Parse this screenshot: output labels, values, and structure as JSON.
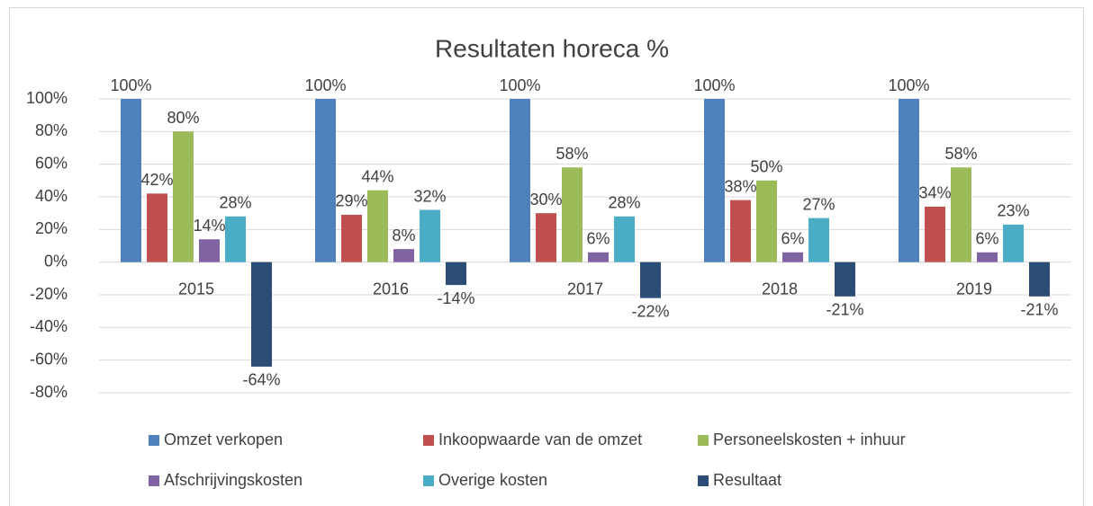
{
  "chart_data": {
    "type": "bar",
    "title": "Resultaten horeca %",
    "categories": [
      "2015",
      "2016",
      "2017",
      "2018",
      "2019"
    ],
    "series": [
      {
        "name": "Omzet verkopen",
        "color": "#4f81bd",
        "values": [
          100,
          100,
          100,
          100,
          100
        ],
        "value_labels": [
          "100%",
          "100%",
          "100%",
          "100%",
          "100%"
        ]
      },
      {
        "name": "Inkoopwaarde van de omzet",
        "color": "#c0504d",
        "values": [
          42,
          29,
          30,
          38,
          34
        ],
        "value_labels": [
          "42%",
          "29%",
          "30%",
          "38%",
          "34%"
        ]
      },
      {
        "name": "Personeelskosten + inhuur",
        "color": "#9bbb59",
        "values": [
          80,
          44,
          58,
          50,
          58
        ],
        "value_labels": [
          "80%",
          "44%",
          "58%",
          "50%",
          "58%"
        ]
      },
      {
        "name": "Afschrijvingskosten",
        "color": "#8064a2",
        "values": [
          14,
          8,
          6,
          6,
          6
        ],
        "value_labels": [
          "14%",
          "8%",
          "6%",
          "6%",
          "6%"
        ]
      },
      {
        "name": "Overige kosten",
        "color": "#4bacc6",
        "values": [
          28,
          32,
          28,
          27,
          23
        ],
        "value_labels": [
          "28%",
          "32%",
          "28%",
          "27%",
          "23%"
        ]
      },
      {
        "name": "Resultaat",
        "color": "#2c4d75",
        "values": [
          -64,
          -14,
          -22,
          -21,
          -21
        ],
        "value_labels": [
          "-64%",
          "-14%",
          "-22%",
          "-21%",
          "-21%"
        ]
      }
    ],
    "ylim": [
      -80,
      100
    ],
    "yticks": [
      {
        "value": -80,
        "label": "-80%"
      },
      {
        "value": -60,
        "label": "-60%"
      },
      {
        "value": -40,
        "label": "-40%"
      },
      {
        "value": -20,
        "label": "-20%"
      },
      {
        "value": 0,
        "label": "0%"
      },
      {
        "value": 20,
        "label": "20%"
      },
      {
        "value": 40,
        "label": "40%"
      },
      {
        "value": 60,
        "label": "60%"
      },
      {
        "value": 80,
        "label": "80%"
      },
      {
        "value": 100,
        "label": "100%"
      }
    ],
    "grid": true,
    "legend": "bottom"
  }
}
